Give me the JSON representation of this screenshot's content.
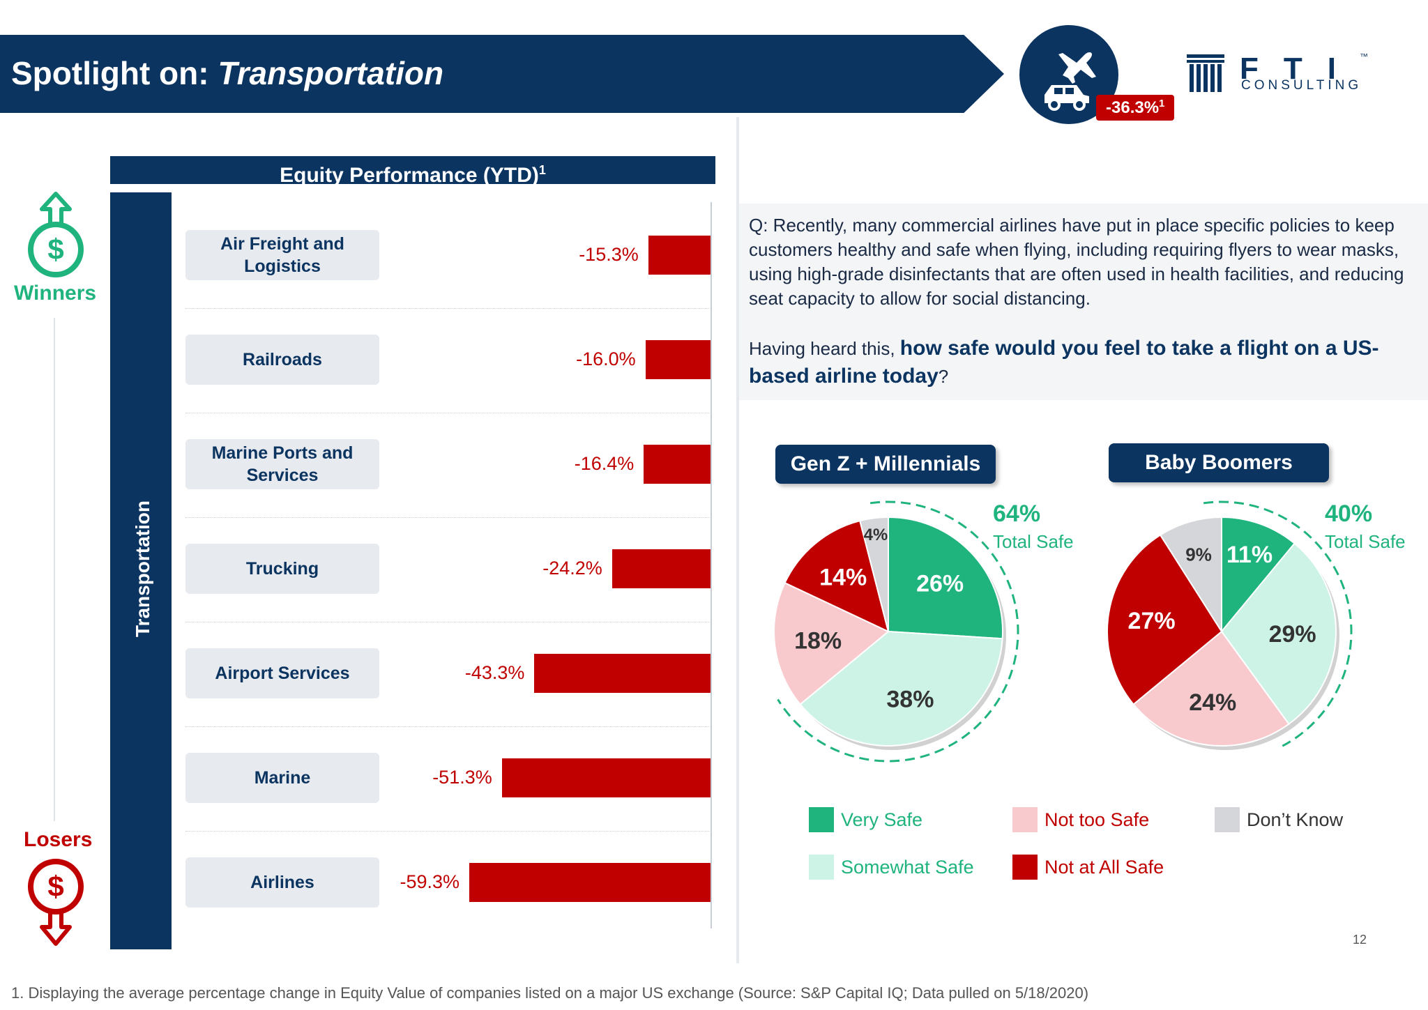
{
  "header": {
    "title_prefix": "Spotlight on: ",
    "title_emphasis": "Transportation",
    "sector_change": "-36.3%",
    "sector_change_footnote": "1",
    "logo_letters": "FTI",
    "logo_subtitle": "CONSULTING",
    "logo_tm": "™"
  },
  "left_panel": {
    "chart_title": "Equity Performance (YTD)",
    "chart_title_footnote": "1",
    "sector_label": "Transportation",
    "winners_label": "Winners",
    "losers_label": "Losers"
  },
  "question": {
    "text": "Q: Recently, many commercial airlines have put in place specific policies to keep customers healthy and safe when flying, including requiring flyers to wear masks, using high-grade disinfectants that are often used in health facilities, and reducing seat capacity to allow for social distancing.",
    "prompt_lead": "Having heard this, ",
    "prompt_bold": "how safe would you feel to take a flight on a US-based airline today",
    "prompt_end": "?"
  },
  "groups": [
    {
      "name": "Gen Z + Millennials",
      "total_safe_pct": "64%",
      "total_safe_label": "Total Safe"
    },
    {
      "name": "Baby Boomers",
      "total_safe_pct": "40%",
      "total_safe_label": "Total Safe"
    }
  ],
  "legend": [
    {
      "label": "Very Safe",
      "color": "#1fb37d",
      "text_color": "#1fb37d"
    },
    {
      "label": "Not too Safe",
      "color": "#f9cacd",
      "text_color": "#c00000"
    },
    {
      "label": "Don’t Know",
      "color": "#d5d6d9",
      "text_color": "#333333"
    },
    {
      "label": "Somewhat Safe",
      "color": "#ccf3e6",
      "text_color": "#1fb37d"
    },
    {
      "label": "Not at All Safe",
      "color": "#c00000",
      "text_color": "#c00000"
    }
  ],
  "page_number": "12",
  "footnote": "1.    Displaying the average percentage change in Equity Value of companies listed on a major US exchange (Source: S&P Capital IQ; Data pulled on 5/18/2020)",
  "colors": {
    "navy": "#0c3461",
    "red": "#c00000",
    "green": "#1fb37d"
  },
  "chart_data": [
    {
      "type": "bar",
      "title": "Equity Performance (YTD)",
      "orientation": "horizontal",
      "categories": [
        "Air Freight and Logistics",
        "Railroads",
        "Marine Ports and Services",
        "Trucking",
        "Airport Services",
        "Marine",
        "Airlines"
      ],
      "values": [
        -15.3,
        -16.0,
        -16.4,
        -24.2,
        -43.3,
        -51.3,
        -59.3
      ],
      "value_labels": [
        "-15.3%",
        "-16.0%",
        "-16.4%",
        "-24.2%",
        "-43.3%",
        "-51.3%",
        "-59.3%"
      ],
      "xlim": [
        -60,
        0
      ],
      "ylabel": "Transportation"
    },
    {
      "type": "pie",
      "title": "Gen Z + Millennials",
      "labels": [
        "Very Safe",
        "Somewhat Safe",
        "Not too Safe",
        "Not at All Safe",
        "Don’t Know"
      ],
      "values": [
        26,
        38,
        18,
        14,
        4
      ],
      "value_labels": [
        "26%",
        "38%",
        "18%",
        "14%",
        "4%"
      ]
    },
    {
      "type": "pie",
      "title": "Baby Boomers",
      "labels": [
        "Very Safe",
        "Somewhat Safe",
        "Not too Safe",
        "Not at All Safe",
        "Don’t Know"
      ],
      "values": [
        11,
        29,
        24,
        27,
        9
      ],
      "value_labels": [
        "11%",
        "29%",
        "24%",
        "27%",
        "9%"
      ]
    }
  ]
}
